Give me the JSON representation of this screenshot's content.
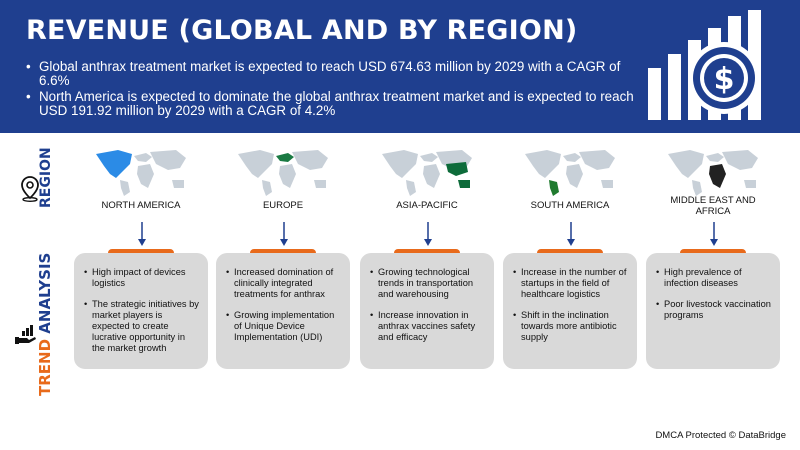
{
  "header": {
    "title": "REVENUE (GLOBAL AND BY REGION)",
    "bullets": [
      "Global anthrax treatment market is expected to reach USD 674.63 million by 2029 with a CAGR of 6.6%",
      "North America is expected to dominate the global anthrax treatment market and is expected to reach USD 191.92 million by 2029 with a CAGR of 4.2%"
    ],
    "icon": "dollar-bar-chart-icon"
  },
  "side": {
    "region_label": "REGION",
    "trend_label_part1": "TREND",
    "trend_label_part2": "ANALYSIS",
    "region_icon": "location-pin-icon",
    "trend_icon": "hand-chart-icon"
  },
  "regions": [
    {
      "name": "NORTH AMERICA",
      "points": [
        "High impact of devices logistics",
        "The strategic initiatives by market players is expected to create lucrative opportunity in the market growth"
      ]
    },
    {
      "name": "EUROPE",
      "points": [
        "Increased domination of clinically integrated treatments for anthrax",
        "Growing implementation of Unique Device Implementation (UDI)"
      ]
    },
    {
      "name": "ASIA-PACIFIC",
      "points": [
        "Growing technological trends in transportation and warehousing",
        "Increase innovation in anthrax vaccines safety and efficacy"
      ]
    },
    {
      "name": "SOUTH AMERICA",
      "points": [
        "Increase in the number of startups in the field of healthcare logistics",
        "Shift in the inclination towards more antibiotic supply"
      ]
    },
    {
      "name": "MIDDLE EAST AND AFRICA",
      "points": [
        "High prevalence of infection diseases",
        "Poor livestock vaccination programs"
      ]
    }
  ],
  "colors": {
    "header_bg": "#1f3f8f",
    "accent_orange": "#e86a1b",
    "card_bg": "#d9d9d9",
    "map_base": "#c8d0d8",
    "highlight_north_america": "#2b8be6",
    "highlight_europe": "#1a7a43",
    "highlight_asia_pacific": "#0d6b3a",
    "highlight_south_america": "#1f7a2e",
    "highlight_mea": "#222222"
  },
  "footer": "DMCA Protected © DataBridge"
}
